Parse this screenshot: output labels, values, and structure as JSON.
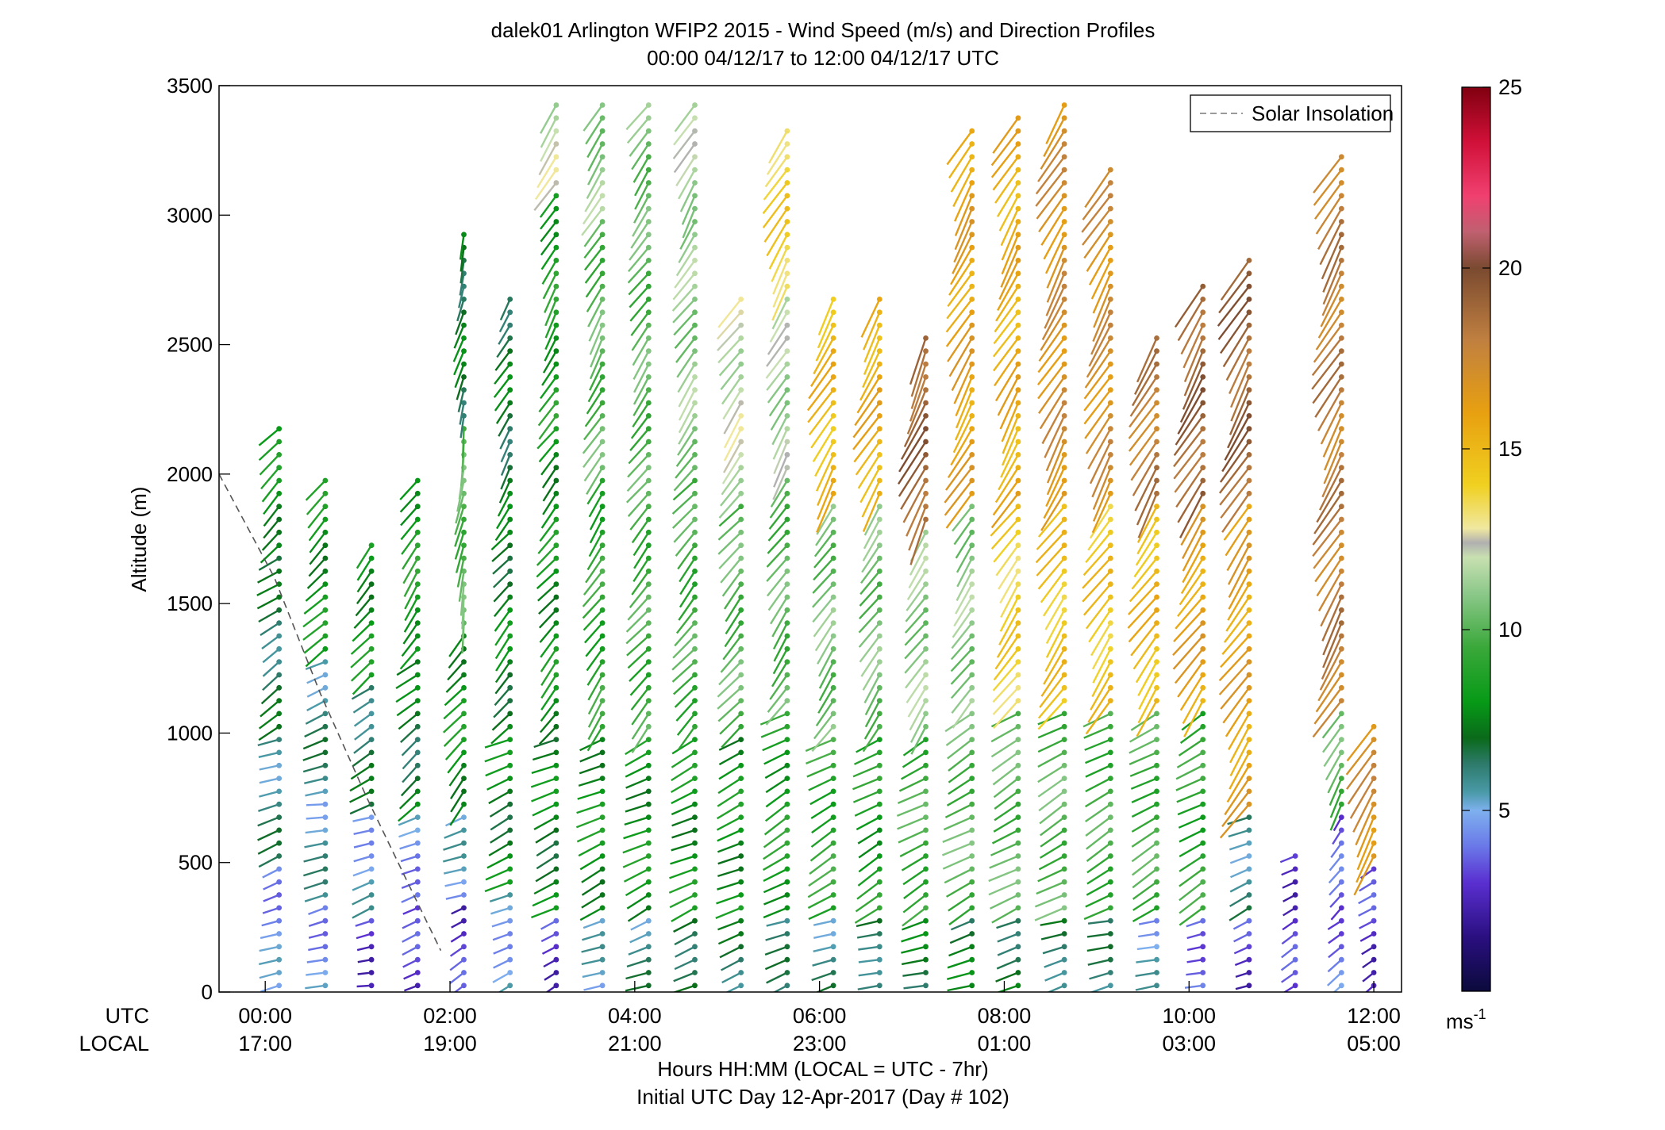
{
  "chart_data": {
    "type": "wind-barb-profile",
    "title_line1": "dalek01 Arlington WFIP2 2015 - Wind Speed (m/s) and Direction Profiles",
    "title_line2": "00:00 04/12/17 to 12:00 04/12/17  UTC",
    "ylabel": "Altitude (m)",
    "xlabel_line1": "Hours HH:MM  (LOCAL = UTC - 7hr)",
    "xlabel_line2": "Initial UTC Day 12-Apr-2017 (Day # 102)",
    "row_label_utc": "UTC",
    "row_label_local": "LOCAL",
    "ylim": [
      0,
      3500
    ],
    "yticks": [
      0,
      500,
      1000,
      1500,
      2000,
      2500,
      3000,
      3500
    ],
    "xlim_hours": [
      -0.5,
      12.3
    ],
    "xticks": [
      {
        "hour": 0,
        "utc": "00:00",
        "local": "17:00"
      },
      {
        "hour": 2,
        "utc": "02:00",
        "local": "19:00"
      },
      {
        "hour": 4,
        "utc": "04:00",
        "local": "21:00"
      },
      {
        "hour": 6,
        "utc": "06:00",
        "local": "23:00"
      },
      {
        "hour": 8,
        "utc": "08:00",
        "local": "01:00"
      },
      {
        "hour": 10,
        "utc": "10:00",
        "local": "03:00"
      },
      {
        "hour": 12,
        "utc": "12:00",
        "local": "05:00"
      }
    ],
    "legend": {
      "label": "Solar Insolation",
      "placement": "top-right",
      "style": "dashed",
      "color": "#8c8c8c"
    },
    "solar_insolation": {
      "x_hours": [
        -0.5,
        0.1,
        0.6,
        1.1,
        1.6,
        1.9
      ],
      "altitude_m": [
        2000,
        1600,
        1150,
        750,
        380,
        160
      ]
    },
    "colorbar": {
      "ticks": [
        5,
        10,
        15,
        20,
        25
      ],
      "range": [
        0,
        25
      ],
      "unit_label": "ms",
      "unit_exponent": "-1",
      "colors": [
        {
          "v": 0,
          "c": "#0b0a3c"
        },
        {
          "v": 1.5,
          "c": "#2a0f80"
        },
        {
          "v": 3,
          "c": "#5a2fd0"
        },
        {
          "v": 4,
          "c": "#6a78e8"
        },
        {
          "v": 5,
          "c": "#7eb0ee"
        },
        {
          "v": 5.5,
          "c": "#4a9aa8"
        },
        {
          "v": 6.3,
          "c": "#2d7a6a"
        },
        {
          "v": 7,
          "c": "#0a6a1a"
        },
        {
          "v": 8,
          "c": "#079a17"
        },
        {
          "v": 9.5,
          "c": "#3aa83a"
        },
        {
          "v": 11,
          "c": "#8cc88a"
        },
        {
          "v": 12,
          "c": "#c8e0b0"
        },
        {
          "v": 12.4,
          "c": "#b0b0b0"
        },
        {
          "v": 12.8,
          "c": "#f0e8a0"
        },
        {
          "v": 14,
          "c": "#f0d020"
        },
        {
          "v": 16,
          "c": "#e8a010"
        },
        {
          "v": 18,
          "c": "#c08040"
        },
        {
          "v": 20,
          "c": "#7a4a30"
        },
        {
          "v": 21,
          "c": "#c06070"
        },
        {
          "v": 22,
          "c": "#f04070"
        },
        {
          "v": 23.5,
          "c": "#d01038"
        },
        {
          "v": 25,
          "c": "#800010"
        }
      ]
    },
    "profiles": [
      {
        "time": 0.15,
        "top": 2200,
        "segments": [
          [
            0,
            500,
            4.5,
            250
          ],
          [
            500,
            1000,
            6,
            250
          ],
          [
            1000,
            1700,
            6.5,
            235
          ],
          [
            1700,
            2200,
            8,
            225
          ]
        ]
      },
      {
        "time": 0.65,
        "top": 1980,
        "segments": [
          [
            0,
            350,
            4.5,
            255
          ],
          [
            350,
            750,
            5.5,
            260
          ],
          [
            750,
            1300,
            6,
            250
          ],
          [
            1300,
            1980,
            8,
            225
          ]
        ]
      },
      {
        "time": 1.15,
        "top": 1770,
        "segments": [
          [
            0,
            300,
            3,
            260
          ],
          [
            300,
            700,
            5,
            250
          ],
          [
            700,
            1200,
            6.5,
            240
          ],
          [
            1200,
            1770,
            8,
            220
          ]
        ]
      },
      {
        "time": 1.65,
        "top": 1980,
        "segments": [
          [
            0,
            350,
            3,
            250
          ],
          [
            350,
            700,
            4.5,
            245
          ],
          [
            700,
            1300,
            7,
            230
          ],
          [
            1300,
            1980,
            8.5,
            215
          ]
        ]
      },
      {
        "time": 2.15,
        "top": 2970,
        "segments": [
          [
            0,
            350,
            3,
            240
          ],
          [
            350,
            700,
            5,
            250
          ],
          [
            700,
            1400,
            8,
            220
          ],
          [
            1400,
            2200,
            10,
            190
          ],
          [
            2200,
            2970,
            7,
            195
          ]
        ]
      },
      {
        "time": 2.65,
        "top": 2690,
        "segments": [
          [
            0,
            400,
            5,
            245
          ],
          [
            400,
            1000,
            7.5,
            245
          ],
          [
            1000,
            1800,
            7.5,
            220
          ],
          [
            1800,
            2690,
            7,
            210
          ]
        ]
      },
      {
        "time": 3.15,
        "top": 3470,
        "segments": [
          [
            0,
            300,
            3,
            235
          ],
          [
            300,
            1000,
            7.5,
            245
          ],
          [
            1000,
            2200,
            8,
            220
          ],
          [
            2200,
            3100,
            8.5,
            210
          ],
          [
            3100,
            3470,
            12,
            215
          ]
        ]
      },
      {
        "time": 3.65,
        "top": 3460,
        "segments": [
          [
            0,
            300,
            5,
            250
          ],
          [
            300,
            1000,
            8,
            245
          ],
          [
            1000,
            2000,
            9,
            215
          ],
          [
            2000,
            3000,
            10,
            210
          ],
          [
            3000,
            3460,
            11,
            215
          ]
        ]
      },
      {
        "time": 4.15,
        "top": 3470,
        "segments": [
          [
            0,
            300,
            6,
            250
          ],
          [
            300,
            1000,
            8,
            245
          ],
          [
            1000,
            2000,
            9.5,
            220
          ],
          [
            2000,
            3000,
            10,
            215
          ],
          [
            3000,
            3470,
            10.5,
            215
          ]
        ]
      },
      {
        "time": 4.65,
        "top": 3460,
        "segments": [
          [
            0,
            300,
            7,
            250
          ],
          [
            300,
            1000,
            8,
            245
          ],
          [
            1000,
            2000,
            9.5,
            220
          ],
          [
            2000,
            3000,
            11,
            215
          ],
          [
            3000,
            3460,
            11.5,
            210
          ]
        ]
      },
      {
        "time": 5.15,
        "top": 2690,
        "segments": [
          [
            0,
            300,
            6.5,
            250
          ],
          [
            300,
            1000,
            8,
            245
          ],
          [
            1000,
            1900,
            10,
            220
          ],
          [
            1900,
            2690,
            12,
            215
          ]
        ]
      },
      {
        "time": 5.65,
        "top": 3330,
        "segments": [
          [
            0,
            300,
            6,
            250
          ],
          [
            300,
            1100,
            8.5,
            240
          ],
          [
            1100,
            2000,
            10,
            215
          ],
          [
            2000,
            2700,
            11.5,
            210
          ],
          [
            2700,
            3330,
            14,
            210
          ]
        ]
      },
      {
        "time": 6.15,
        "top": 2690,
        "segments": [
          [
            0,
            300,
            6,
            250
          ],
          [
            300,
            1000,
            9,
            240
          ],
          [
            1000,
            1900,
            10.5,
            215
          ],
          [
            1900,
            2690,
            15,
            210
          ]
        ]
      },
      {
        "time": 6.65,
        "top": 2690,
        "segments": [
          [
            0,
            300,
            6.5,
            255
          ],
          [
            300,
            1000,
            8.5,
            240
          ],
          [
            1000,
            1900,
            10.5,
            215
          ],
          [
            1900,
            2690,
            15.5,
            210
          ]
        ]
      },
      {
        "time": 7.15,
        "top": 2550,
        "segments": [
          [
            0,
            300,
            7,
            255
          ],
          [
            300,
            1000,
            9.5,
            240
          ],
          [
            1000,
            1800,
            11,
            215
          ],
          [
            1800,
            2550,
            19,
            205
          ]
        ]
      },
      {
        "time": 7.65,
        "top": 3330,
        "segments": [
          [
            0,
            300,
            7,
            255
          ],
          [
            300,
            1100,
            10,
            240
          ],
          [
            1100,
            1900,
            11,
            215
          ],
          [
            1900,
            3330,
            16,
            210
          ]
        ]
      },
      {
        "time": 8.15,
        "top": 3400,
        "segments": [
          [
            0,
            300,
            7,
            255
          ],
          [
            300,
            1100,
            10,
            240
          ],
          [
            1100,
            1900,
            14,
            215
          ],
          [
            1900,
            3400,
            15.5,
            210
          ]
        ]
      },
      {
        "time": 8.65,
        "top": 3470,
        "segments": [
          [
            0,
            300,
            6.5,
            255
          ],
          [
            300,
            1100,
            10,
            240
          ],
          [
            1100,
            1900,
            14.5,
            215
          ],
          [
            1900,
            3470,
            17,
            210
          ]
        ]
      },
      {
        "time": 9.15,
        "top": 3180,
        "segments": [
          [
            0,
            300,
            6,
            255
          ],
          [
            300,
            1100,
            9.5,
            240
          ],
          [
            1100,
            1900,
            14.5,
            215
          ],
          [
            1900,
            3180,
            17,
            210
          ]
        ]
      },
      {
        "time": 9.65,
        "top": 2550,
        "segments": [
          [
            0,
            300,
            5,
            255
          ],
          [
            300,
            1100,
            9.5,
            240
          ],
          [
            1100,
            1900,
            15,
            215
          ],
          [
            1900,
            2550,
            18,
            210
          ]
        ]
      },
      {
        "time": 10.15,
        "top": 2760,
        "segments": [
          [
            0,
            300,
            4,
            255
          ],
          [
            300,
            1100,
            9,
            240
          ],
          [
            1100,
            1900,
            16,
            215
          ],
          [
            1900,
            2760,
            19,
            210
          ]
        ]
      },
      {
        "time": 10.65,
        "top": 2830,
        "segments": [
          [
            0,
            300,
            3,
            250
          ],
          [
            300,
            700,
            6,
            245
          ],
          [
            700,
            1900,
            16,
            215
          ],
          [
            1900,
            2830,
            19,
            210
          ]
        ]
      },
      {
        "time": 11.15,
        "top": 530,
        "segments": [
          [
            0,
            530,
            3,
            240
          ]
        ]
      },
      {
        "time": 11.65,
        "top": 3260,
        "segments": [
          [
            0,
            300,
            4,
            235
          ],
          [
            300,
            700,
            3.5,
            215
          ],
          [
            700,
            1100,
            10,
            210
          ],
          [
            1100,
            3260,
            18,
            210
          ]
        ]
      },
      {
        "time": 12.0,
        "top": 1050,
        "segments": [
          [
            0,
            500,
            3,
            235
          ],
          [
            500,
            1050,
            17,
            210
          ]
        ]
      }
    ]
  }
}
